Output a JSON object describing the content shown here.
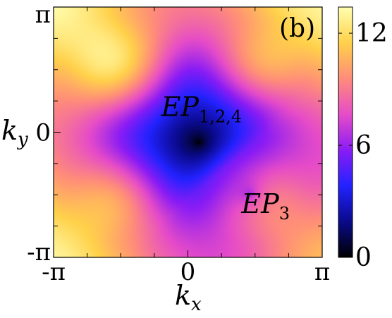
{
  "chart_data": {
    "type": "heatmap",
    "panel_label": "(b)",
    "xlabel": "k",
    "xlabel_sub": "x",
    "ylabel": "k",
    "ylabel_sub": "y",
    "xlim": [
      -3.14159,
      3.14159
    ],
    "ylim": [
      -3.14159,
      3.14159
    ],
    "x_ticks": [
      {
        "value": -3.14159,
        "label": "-π"
      },
      {
        "value": 0,
        "label": "0"
      },
      {
        "value": 3.14159,
        "label": "π"
      }
    ],
    "y_ticks": [
      {
        "value": 3.14159,
        "label": "π"
      },
      {
        "value": 0,
        "label": "0"
      },
      {
        "value": -3.14159,
        "label": "-π"
      }
    ],
    "colorbar": {
      "range": [
        0,
        13.4
      ],
      "ticks": [
        {
          "value": 12,
          "label": "12"
        },
        {
          "value": 6,
          "label": "6"
        },
        {
          "value": 0,
          "label": "0"
        }
      ],
      "colors": [
        "#000000",
        "#0a0a8a",
        "#2222ff",
        "#8a1cf5",
        "#e64cc8",
        "#ff8c7a",
        "#ffd14a",
        "#ffffb0"
      ]
    },
    "annotations": [
      {
        "text": "EP",
        "sub": "1,2,4",
        "x": 0.25,
        "y": -0.25
      },
      {
        "text": "EP",
        "sub": "3",
        "x": 1.45,
        "y": -1.55
      }
    ],
    "grid": false
  }
}
